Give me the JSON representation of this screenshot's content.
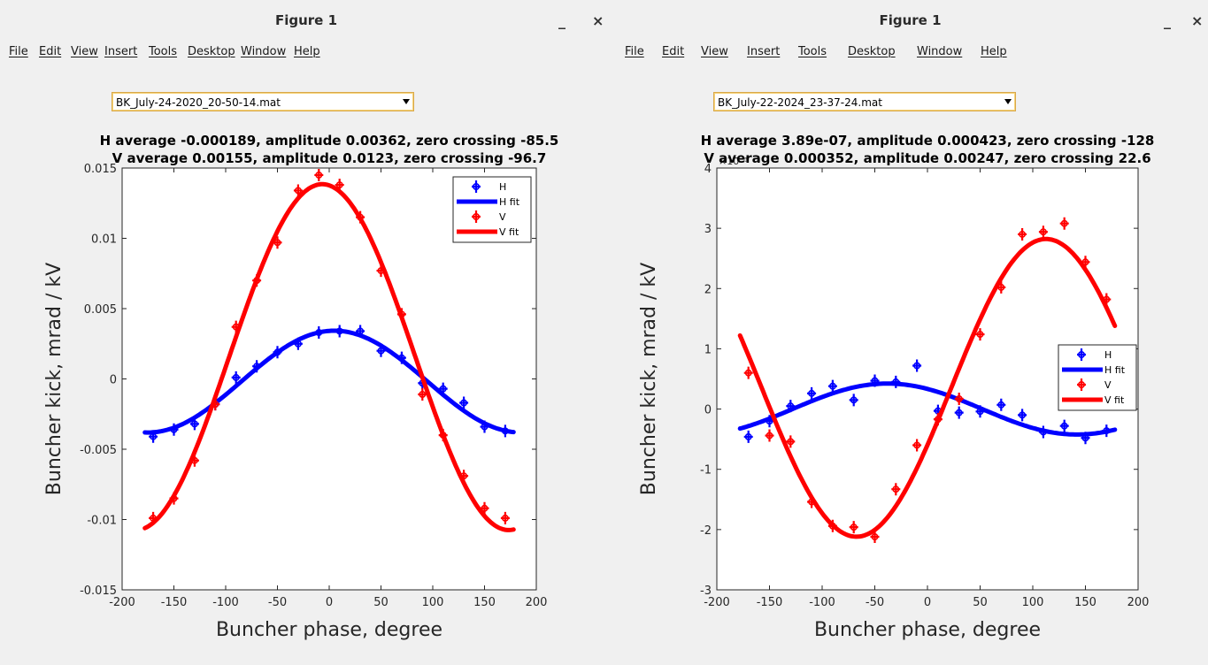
{
  "windows": [
    {
      "title": "Figure 1",
      "minimize": "_",
      "close": "×",
      "menu": [
        "File",
        "Edit",
        "View",
        "Insert",
        "Tools",
        "Desktop",
        "Window",
        "Help"
      ],
      "dropdown_value": "BK_July-24-2020_20-50-14.mat"
    },
    {
      "title": "Figure 1",
      "minimize": "_",
      "close": "×",
      "menu": [
        "File",
        "Edit",
        "View",
        "Insert",
        "Tools",
        "Desktop",
        "Window",
        "Help"
      ],
      "dropdown_value": "BK_July-22-2024_23-37-24.mat"
    }
  ],
  "chart_data": [
    {
      "type": "line",
      "title": [
        "H average -0.000189, amplitude 0.00362, zero crossing -85.5",
        "V average 0.00155, amplitude 0.0123, zero crossing -96.7"
      ],
      "xlabel": "Buncher phase, degree",
      "ylabel": "Buncher kick, mrad / kV",
      "xlim": [
        -200,
        200
      ],
      "ylim": [
        -0.015,
        0.015
      ],
      "xticks": [
        -200,
        -150,
        -100,
        -50,
        0,
        50,
        100,
        150,
        200
      ],
      "yticks": [
        -0.015,
        -0.01,
        -0.005,
        0,
        0.005,
        0.01,
        0.015
      ],
      "ytick_labels": [
        "-0.015",
        "-0.01",
        "-0.005",
        "0",
        "0.005",
        "0.01",
        "0.015"
      ],
      "exponent_label": "",
      "legend_position": "top-right",
      "legend": [
        "H",
        "H fit",
        "V",
        "V fit"
      ],
      "colors": {
        "H": "#0000ff",
        "V": "#ff0000"
      },
      "series": [
        {
          "name": "H",
          "kind": "markers",
          "x": [
            -170,
            -150,
            -130,
            -110,
            -90,
            -70,
            -50,
            -30,
            -10,
            10,
            30,
            50,
            70,
            90,
            110,
            130,
            150,
            170
          ],
          "y": [
            -0.0041,
            -0.0036,
            -0.0032,
            -0.0018,
            0.0001,
            0.0009,
            0.0019,
            0.0025,
            0.0033,
            0.0034,
            0.0034,
            0.002,
            0.0015,
            -0.0003,
            -0.0007,
            -0.0017,
            -0.0034,
            -0.0037
          ]
        },
        {
          "name": "H fit",
          "kind": "line",
          "average": -0.000189,
          "amplitude": 0.00362,
          "peak": 5.0,
          "xrange": [
            -178,
            178
          ]
        },
        {
          "name": "V",
          "kind": "markers",
          "x": [
            -170,
            -150,
            -130,
            -110,
            -90,
            -70,
            -50,
            -30,
            -10,
            10,
            30,
            50,
            70,
            90,
            110,
            130,
            150,
            170
          ],
          "y": [
            -0.0099,
            -0.0085,
            -0.0058,
            -0.0018,
            0.0037,
            0.007,
            0.0097,
            0.0134,
            0.0145,
            0.0138,
            0.0115,
            0.0077,
            0.0046,
            -0.0011,
            -0.004,
            -0.0069,
            -0.0092,
            -0.0099
          ]
        },
        {
          "name": "V fit",
          "kind": "line",
          "average": 0.00155,
          "amplitude": 0.0123,
          "peak": -6.7,
          "xrange": [
            -178,
            178
          ]
        }
      ]
    },
    {
      "type": "line",
      "title": [
        "H average 3.89e-07, amplitude 0.000423, zero crossing -128",
        "V average 0.000352, amplitude 0.00247, zero crossing 22.6"
      ],
      "xlabel": "Buncher phase, degree",
      "ylabel": "Buncher kick, mrad / kV",
      "xlim": [
        -200,
        200
      ],
      "ylim": [
        -0.003,
        0.004
      ],
      "xticks": [
        -200,
        -150,
        -100,
        -50,
        0,
        50,
        100,
        150,
        200
      ],
      "yticks": [
        -0.003,
        -0.002,
        -0.001,
        0,
        0.001,
        0.002,
        0.003,
        0.004
      ],
      "ytick_labels": [
        "-3",
        "-2",
        "-1",
        "0",
        "1",
        "2",
        "3",
        "4"
      ],
      "exponent_label": "×10⁻³",
      "legend_position": "right",
      "legend": [
        "H",
        "H fit",
        "V",
        "V fit"
      ],
      "colors": {
        "H": "#0000ff",
        "V": "#ff0000"
      },
      "series": [
        {
          "name": "H",
          "kind": "markers",
          "x": [
            -170,
            -150,
            -130,
            -110,
            -90,
            -70,
            -50,
            -30,
            -10,
            10,
            30,
            50,
            70,
            90,
            110,
            130,
            150,
            170
          ],
          "y": [
            -0.00046,
            -0.0002,
            5e-05,
            0.00026,
            0.00038,
            0.00015,
            0.00047,
            0.00045,
            0.00072,
            -3e-05,
            -6e-05,
            -4e-05,
            7e-05,
            -0.0001,
            -0.00038,
            -0.00028,
            -0.00048,
            -0.00036
          ]
        },
        {
          "name": "H fit",
          "kind": "line",
          "average": 3.89e-07,
          "amplitude": 0.000423,
          "peak": -38,
          "xrange": [
            -178,
            178
          ]
        },
        {
          "name": "V",
          "kind": "markers",
          "x": [
            -170,
            -150,
            -130,
            -110,
            -90,
            -70,
            -50,
            -30,
            -10,
            10,
            30,
            50,
            70,
            90,
            110,
            130,
            150,
            170
          ],
          "y": [
            0.0006,
            -0.00044,
            -0.00054,
            -0.00154,
            -0.00194,
            -0.00196,
            -0.00212,
            -0.00133,
            -0.0006,
            -0.00017,
            0.00017,
            0.00124,
            0.00202,
            0.0029,
            0.00294,
            0.00308,
            0.00244,
            0.00182
          ]
        },
        {
          "name": "V fit",
          "kind": "line",
          "average": 0.000352,
          "amplitude": 0.00247,
          "peak": 112.6,
          "xrange": [
            -178,
            178
          ]
        }
      ]
    }
  ]
}
